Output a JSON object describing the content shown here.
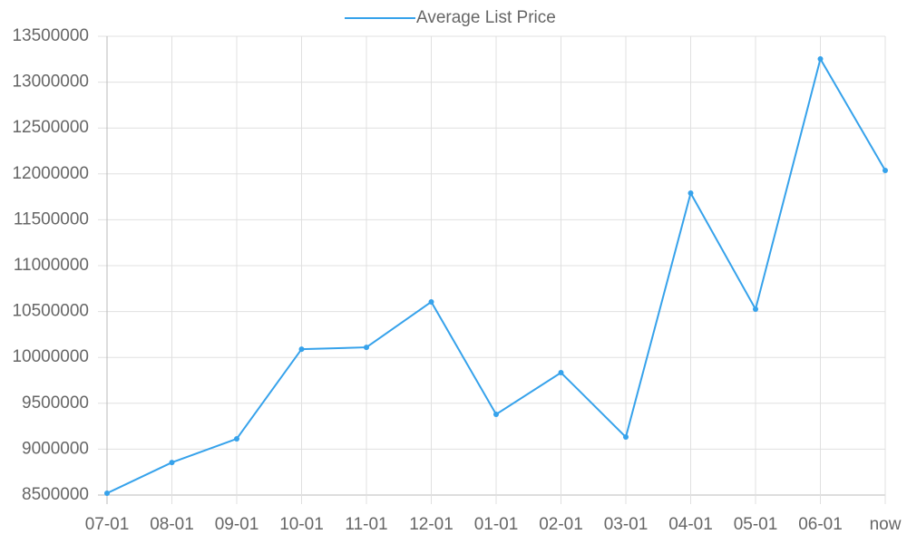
{
  "chart_data": {
    "type": "line",
    "categories": [
      "07-01",
      "08-01",
      "09-01",
      "10-01",
      "11-01",
      "12-01",
      "01-01",
      "02-01",
      "03-01",
      "04-01",
      "05-01",
      "06-01",
      "now"
    ],
    "series": [
      {
        "name": "Average List Price",
        "color": "#36a2eb",
        "values": [
          8520000,
          8855000,
          9113000,
          10090000,
          10110000,
          10605000,
          9380000,
          9834000,
          9132000,
          11790000,
          10526000,
          13253000,
          12038000
        ]
      }
    ],
    "ylim": [
      8500000,
      13500000
    ],
    "yticks": [
      8500000,
      9000000,
      9500000,
      10000000,
      10500000,
      11000000,
      11500000,
      12000000,
      12500000,
      13000000,
      13500000
    ],
    "grid": true,
    "legend": "top"
  }
}
